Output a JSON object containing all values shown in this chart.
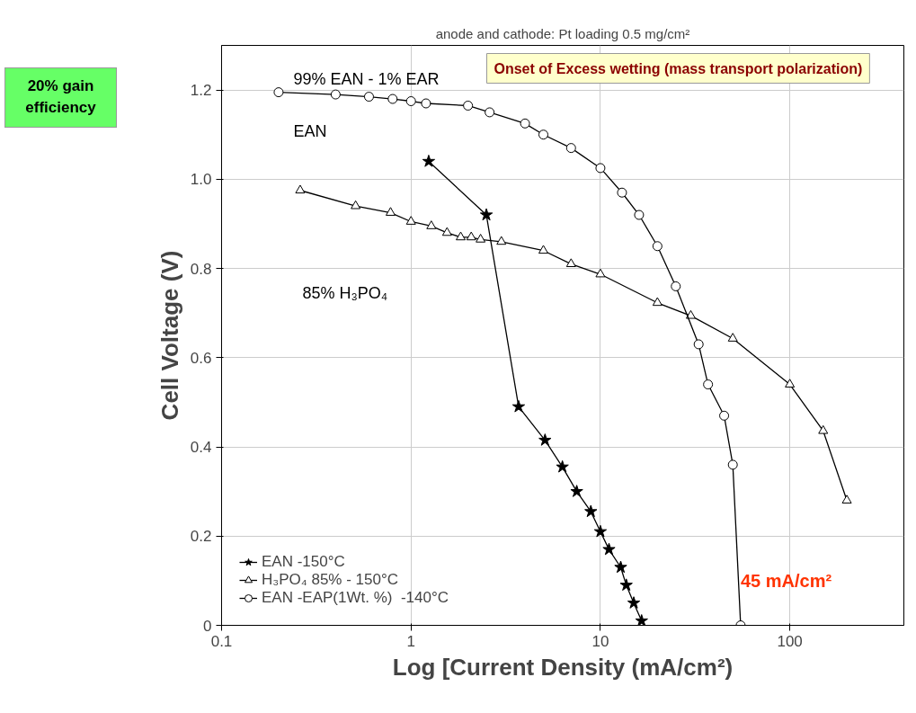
{
  "chart_data": {
    "type": "line",
    "title": "anode and cathode: Pt loading 0.5 mg/cm²",
    "xlabel": "Log [Current Density (mA/cm²)",
    "ylabel": "Cell Voltage (V)",
    "log": "x",
    "xlim": [
      0.1,
      400
    ],
    "ylim": [
      0,
      1.3
    ],
    "xticks": [
      0.1,
      1,
      10,
      100
    ],
    "yticks": [
      0,
      0.2,
      0.4,
      0.6,
      0.8,
      {
        "value": 1,
        "label": "1.0"
      },
      1.2
    ],
    "grid": true,
    "legend": "bottom left",
    "line_style": "solid",
    "series": [
      {
        "name": "EAN -150°C",
        "color": "#000000",
        "marker": "star",
        "x": [
          1.24,
          2.5,
          3.7,
          5.1,
          6.3,
          7.5,
          8.9,
          10,
          11.1,
          12.8,
          13.7,
          15,
          16.5
        ],
        "values": [
          1.04,
          0.92,
          0.49,
          0.415,
          0.355,
          0.3,
          0.255,
          0.21,
          0.17,
          0.13,
          0.09,
          0.05,
          0.01
        ]
      },
      {
        "name": "H₃PO₄ 85% - 150°C",
        "color": "#000000",
        "marker": "triangle",
        "x": [
          0.26,
          0.51,
          0.78,
          1,
          1.28,
          1.55,
          1.83,
          2.08,
          2.33,
          3,
          5,
          7,
          10,
          20,
          30,
          50,
          100,
          150,
          200
        ],
        "values": [
          0.975,
          0.94,
          0.925,
          0.905,
          0.895,
          0.88,
          0.87,
          0.87,
          0.865,
          0.86,
          0.84,
          0.81,
          0.787,
          0.723,
          0.694,
          0.643,
          0.54,
          0.436,
          0.28
        ]
      },
      {
        "name": "EAN -EAP(1Wt. %)  -140°C",
        "color": "#000000",
        "marker": "circle",
        "x": [
          0.2,
          0.4,
          0.6,
          0.8,
          1,
          1.2,
          2,
          2.6,
          4,
          5,
          7,
          10,
          13,
          16,
          20,
          25,
          33,
          37,
          45,
          50,
          55
        ],
        "values": [
          1.195,
          1.19,
          1.185,
          1.18,
          1.175,
          1.17,
          1.165,
          1.15,
          1.125,
          1.1,
          1.07,
          1.025,
          0.97,
          0.92,
          0.85,
          0.76,
          0.63,
          0.54,
          0.47,
          0.36,
          0
        ]
      }
    ],
    "annotations": [
      "99% EAN  - 1% EAR",
      "EAN",
      "85% H₃PO₄",
      "20% gain efficiency",
      "Onset of Excess wetting (mass transport polarization)",
      {
        "text": "45 mA/cm²",
        "x": 55,
        "y": 0.1
      }
    ]
  }
}
